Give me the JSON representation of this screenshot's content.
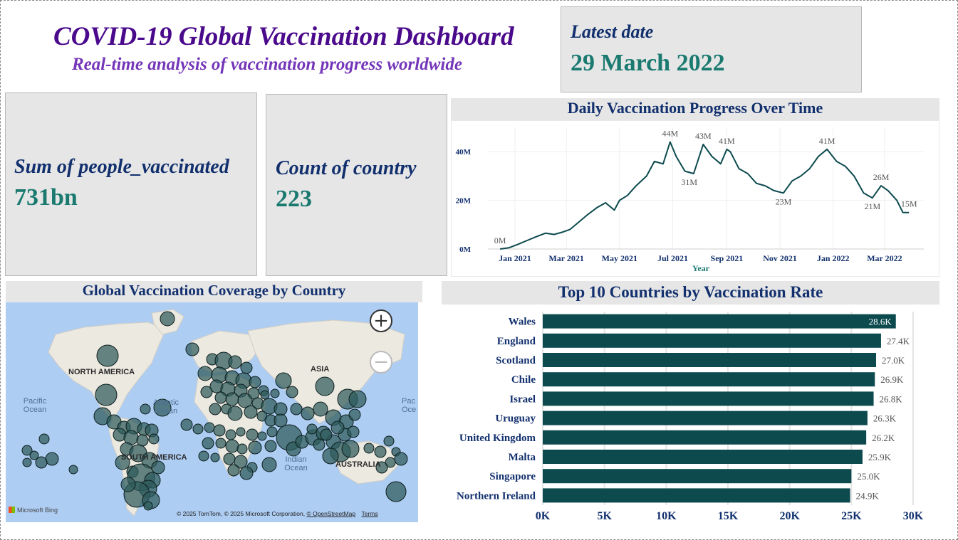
{
  "header": {
    "title": "COVID-19 Global Vaccination Dashboard",
    "subtitle": "Real-time analysis of vaccination progress worldwide"
  },
  "cards": {
    "latest_date": {
      "label": "Latest date",
      "value": "29 March 2022"
    },
    "people_vaccinated": {
      "label": "Sum of people_vaccinated",
      "value": "731bn"
    },
    "country_count": {
      "label": "Count of country",
      "value": "223"
    }
  },
  "map": {
    "title": "Global Vaccination Coverage by Country",
    "labels": {
      "north_america": "NORTH AMERICA",
      "south_america": "SOUTH AMERICA",
      "asia": "ASIA",
      "australia": "AUSTRALIA"
    },
    "oceans": {
      "pacific": "Pacific Ocean",
      "atlantic": "Atlantic Ocean",
      "indian": "Indian Ocean",
      "pacific_right": "Pac Oce"
    },
    "zoom_in": "+",
    "zoom_out": "−",
    "provider": "Microsoft Bing",
    "attribution": "© 2025 TomTom, © 2025 Microsoft Corporation,",
    "osm_link": "© OpenStreetMap",
    "terms_link": "Terms",
    "bubble_color": "#2e5a5a"
  },
  "chart_data": [
    {
      "type": "line",
      "title": "Daily Vaccination Progress Over Time",
      "xlabel": "Year",
      "ylabel": "",
      "x_ticks": [
        "Jan 2021",
        "Mar 2021",
        "May 2021",
        "Jul 2021",
        "Sep 2021",
        "Nov 2021",
        "Jan 2022",
        "Mar 2022"
      ],
      "y_ticks": [
        "0M",
        "20M",
        "40M"
      ],
      "ylim": [
        0,
        50
      ],
      "xlim": [
        "2020-12-01",
        "2022-04-15"
      ],
      "grid": true,
      "color": "#0c4a4e",
      "series": [
        {
          "x": [
            "2020-12-15",
            "2020-12-25",
            "2021-01-05",
            "2021-01-15",
            "2021-01-25",
            "2021-02-05",
            "2021-02-15",
            "2021-02-25",
            "2021-03-05",
            "2021-03-15",
            "2021-03-25",
            "2021-04-05",
            "2021-04-15",
            "2021-04-25",
            "2021-05-01",
            "2021-05-10",
            "2021-05-20",
            "2021-06-01",
            "2021-06-10",
            "2021-06-20",
            "2021-06-28",
            "2021-07-05",
            "2021-07-15",
            "2021-07-25",
            "2021-08-05",
            "2021-08-15",
            "2021-08-25",
            "2021-09-01",
            "2021-09-05",
            "2021-09-15",
            "2021-09-25",
            "2021-10-05",
            "2021-10-15",
            "2021-10-25",
            "2021-11-05",
            "2021-11-15",
            "2021-11-25",
            "2021-12-05",
            "2021-12-15",
            "2021-12-25",
            "2022-01-05",
            "2022-01-15",
            "2022-01-25",
            "2022-02-05",
            "2022-02-15",
            "2022-02-25",
            "2022-03-05",
            "2022-03-15",
            "2022-03-22",
            "2022-03-29"
          ],
          "y": [
            0,
            0.5,
            2,
            3.5,
            5,
            6.5,
            6,
            7,
            8,
            11,
            14,
            17,
            19,
            16,
            20,
            22,
            26,
            30,
            36,
            35,
            44,
            38,
            32,
            31,
            43,
            38,
            35,
            41,
            40,
            33,
            31,
            27,
            26,
            24,
            23,
            28,
            30,
            33,
            38,
            41,
            36,
            34,
            30,
            23,
            21,
            26,
            24,
            20,
            15,
            15
          ]
        }
      ],
      "annotations": [
        {
          "x": "2020-12-15",
          "y": 0,
          "text": "0M"
        },
        {
          "x": "2021-06-28",
          "y": 44,
          "text": "44M"
        },
        {
          "x": "2021-07-20",
          "y": 31,
          "text": "31M"
        },
        {
          "x": "2021-08-05",
          "y": 43,
          "text": "43M"
        },
        {
          "x": "2021-09-01",
          "y": 41,
          "text": "41M"
        },
        {
          "x": "2021-11-05",
          "y": 23,
          "text": "23M"
        },
        {
          "x": "2021-12-25",
          "y": 41,
          "text": "41M"
        },
        {
          "x": "2022-02-15",
          "y": 21,
          "text": "21M"
        },
        {
          "x": "2022-02-25",
          "y": 26,
          "text": "26M"
        },
        {
          "x": "2022-03-29",
          "y": 15,
          "text": "15M"
        }
      ]
    },
    {
      "type": "bar",
      "orientation": "horizontal",
      "title": "Top 10 Countries by Vaccination Rate",
      "xlabel": "",
      "ylabel": "",
      "categories": [
        "Wales",
        "England",
        "Scotland",
        "Chile",
        "Israel",
        "Uruguay",
        "United Kingdom",
        "Malta",
        "Singapore",
        "Northern Ireland"
      ],
      "values": [
        28.6,
        27.4,
        27.0,
        26.9,
        26.8,
        26.3,
        26.2,
        25.9,
        25.0,
        24.9
      ],
      "value_labels": [
        "28.6K",
        "27.4K",
        "27.0K",
        "26.9K",
        "26.8K",
        "26.3K",
        "26.2K",
        "25.9K",
        "25.0K",
        "24.9K"
      ],
      "x_ticks": [
        "0K",
        "5K",
        "10K",
        "15K",
        "20K",
        "25K",
        "30K"
      ],
      "xlim": [
        0,
        30
      ],
      "grid": true,
      "color": "#0c4a4e"
    }
  ]
}
